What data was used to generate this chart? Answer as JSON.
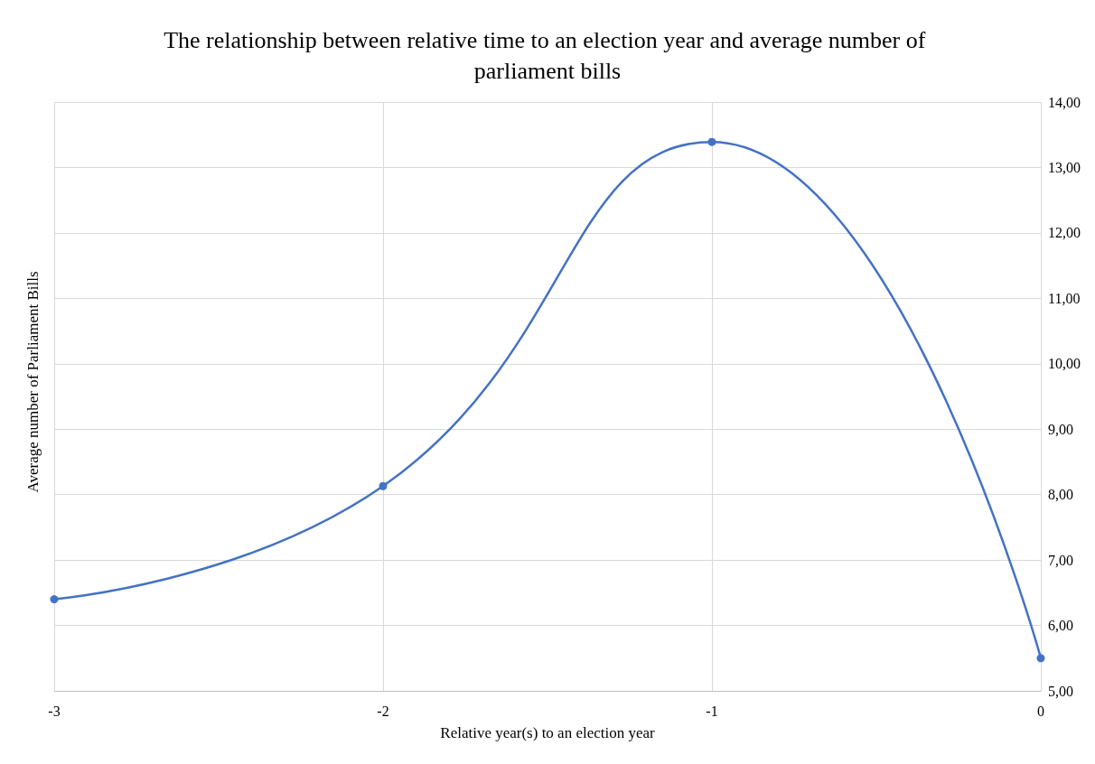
{
  "chart_data": {
    "type": "line",
    "title": "The relationship between relative time to an election year and average number of parliament bills",
    "xlabel": "Relative year(s) to an election year",
    "ylabel": "Average number of Parliament Bills",
    "x": [
      -3,
      -2,
      -1,
      0
    ],
    "series": [
      {
        "color": "#4472c4",
        "values": [
          6.4,
          8.13,
          13.39,
          5.5
        ]
      }
    ],
    "xlim": [
      -3,
      0
    ],
    "xticks": [
      -3,
      -2,
      -1,
      0
    ],
    "ylim": [
      5,
      14
    ],
    "yticks": [
      {
        "value": 5,
        "label": "5,00"
      },
      {
        "value": 6,
        "label": "6,00"
      },
      {
        "value": 7,
        "label": "7,00"
      },
      {
        "value": 8,
        "label": "8,00"
      },
      {
        "value": 9,
        "label": "9,00"
      },
      {
        "value": 10,
        "label": "10,00"
      },
      {
        "value": 11,
        "label": "11,00"
      },
      {
        "value": 12,
        "label": "12,00"
      },
      {
        "value": 13,
        "label": "13,00"
      },
      {
        "value": 14,
        "label": "14,00"
      }
    ],
    "grid": true,
    "marker": "circle",
    "line_style": "solid"
  }
}
